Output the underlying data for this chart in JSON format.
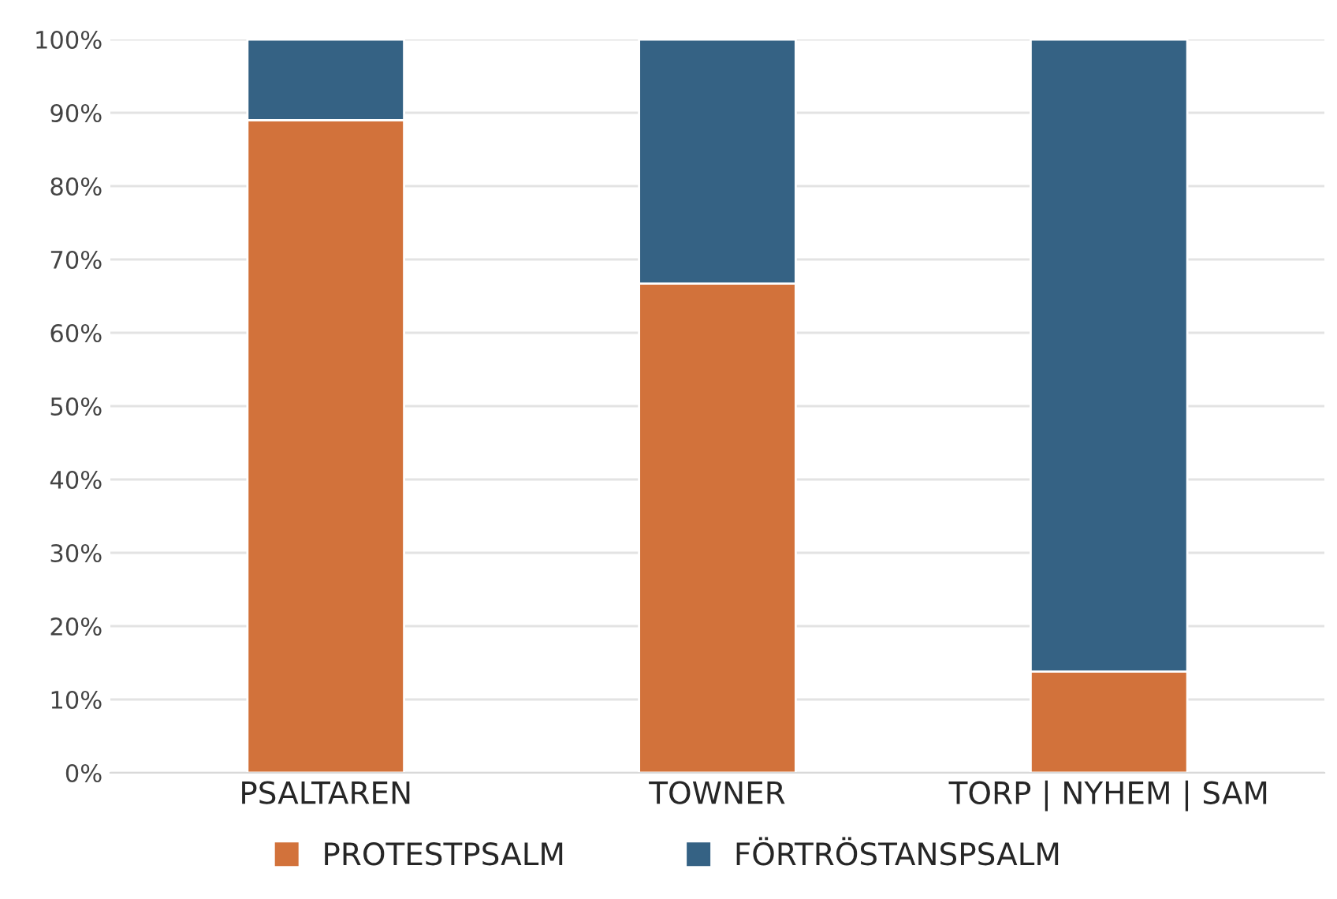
{
  "chart_data": {
    "type": "bar",
    "stacked": true,
    "categories": [
      "PSALTAREN",
      "TOWNER",
      "TORP | NYHEM | SAM"
    ],
    "series": [
      {
        "name": "PROTESTPSALM",
        "color": "#d2723b",
        "values": [
          89,
          66.7,
          13.8
        ]
      },
      {
        "name": "FÖRTRÖSTANSPSALM",
        "color": "#356284",
        "values": [
          11,
          33.3,
          86.2
        ]
      }
    ],
    "ylim": [
      0,
      100
    ],
    "yticks": [
      {
        "value": 0,
        "label": "0%"
      },
      {
        "value": 10,
        "label": "10%"
      },
      {
        "value": 20,
        "label": "20%"
      },
      {
        "value": 30,
        "label": "30%"
      },
      {
        "value": 40,
        "label": "40%"
      },
      {
        "value": 50,
        "label": "50%"
      },
      {
        "value": 60,
        "label": "60%"
      },
      {
        "value": 70,
        "label": "70%"
      },
      {
        "value": 80,
        "label": "80%"
      },
      {
        "value": 90,
        "label": "90%"
      },
      {
        "value": 100,
        "label": "100%"
      }
    ],
    "grid": "y",
    "legend": "bottom"
  }
}
